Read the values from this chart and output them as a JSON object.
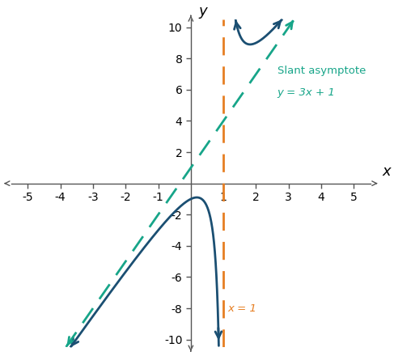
{
  "xlabel": "x",
  "ylabel": "y",
  "xlim": [
    -5.5,
    5.5
  ],
  "ylim": [
    -10.5,
    10.5
  ],
  "xticks": [
    -5,
    -4,
    -3,
    -2,
    -1,
    1,
    2,
    3,
    4,
    5
  ],
  "yticks": [
    -10,
    -8,
    -6,
    -4,
    -2,
    2,
    4,
    6,
    8,
    10
  ],
  "func_color": "#1b4f72",
  "slant_color": "#17a589",
  "vert_color": "#e67e22",
  "slant_label_line1": "Slant asymptote",
  "slant_label_line2": "y = 3x + 1",
  "vert_label": "x = 1",
  "vertical_asymptote": 1,
  "background_color": "#ffffff",
  "tick_fontsize": 10,
  "label_fontsize": 13
}
